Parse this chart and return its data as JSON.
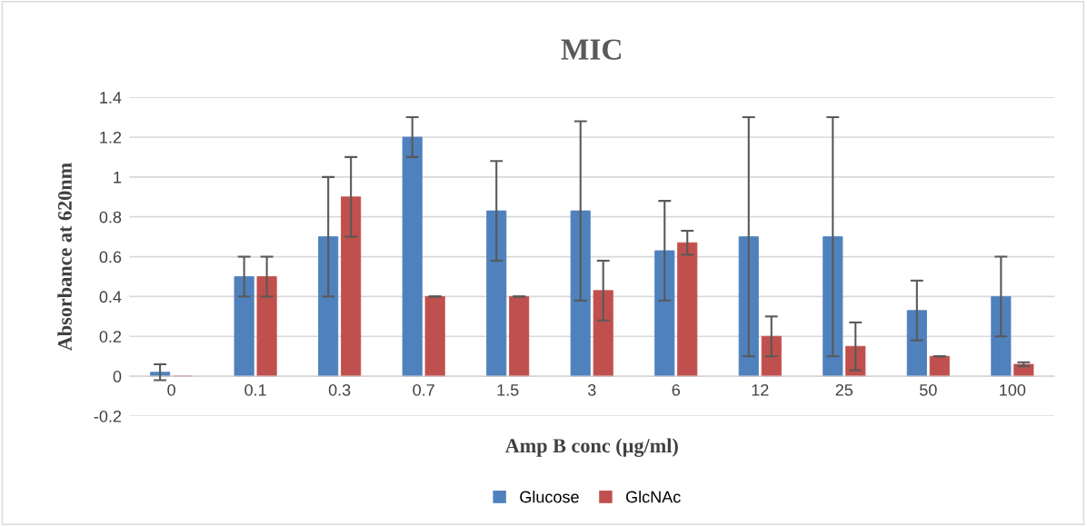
{
  "chart_data": {
    "type": "bar",
    "title": "MIC",
    "xlabel": "Amp B conc (µg/ml)",
    "ylabel": "Absorbance at 620nm",
    "categories": [
      "0",
      "0.1",
      "0.3",
      "0.7",
      "1.5",
      "3",
      "6",
      "12",
      "25",
      "50",
      "100"
    ],
    "series": [
      {
        "name": "Glucose",
        "color": "#4f81bd",
        "values": [
          0.02,
          0.5,
          0.7,
          1.2,
          0.83,
          0.83,
          0.63,
          0.7,
          0.7,
          0.33,
          0.4
        ],
        "errors": [
          0.04,
          0.1,
          0.3,
          0.1,
          0.25,
          0.45,
          0.25,
          0.6,
          0.6,
          0.15,
          0.2
        ]
      },
      {
        "name": "GlcNAc",
        "color": "#c0504d",
        "values": [
          0,
          0.5,
          0.9,
          0.4,
          0.4,
          0.43,
          0.67,
          0.2,
          0.15,
          0.1,
          0.06
        ],
        "errors": [
          null,
          0.1,
          0.2,
          0,
          0,
          0.15,
          0.06,
          0.1,
          0.12,
          0,
          0.01
        ]
      }
    ],
    "ylim": [
      -0.2,
      1.4
    ],
    "yticks": [
      -0.2,
      {
        "value": 0,
        "label": "0"
      },
      0.2,
      0.4,
      0.6,
      0.8,
      {
        "value": 1,
        "label": "1"
      },
      1.2,
      1.4
    ],
    "grid": "y",
    "legend": "bottom"
  }
}
